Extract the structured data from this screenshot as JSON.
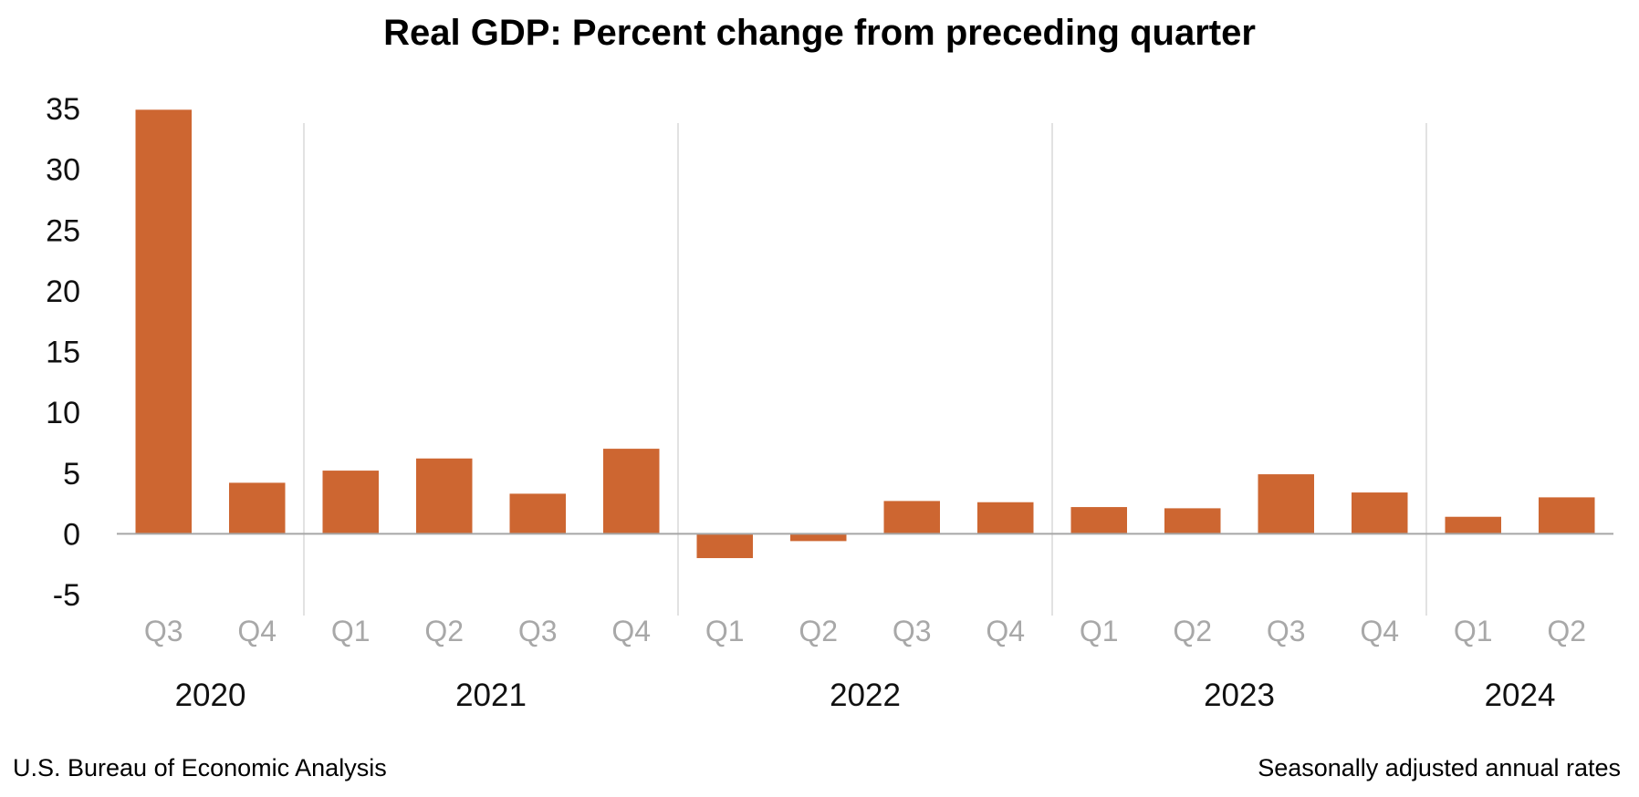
{
  "footer": {
    "source": "U.S. Bureau of Economic Analysis",
    "note": "Seasonally adjusted annual rates"
  },
  "chart_data": {
    "type": "bar",
    "title": "Real GDP: Percent change from preceding quarter",
    "xlabel": "",
    "ylabel": "",
    "ylim": [
      -5,
      35
    ],
    "yticks": [
      35,
      30,
      25,
      20,
      15,
      10,
      5,
      0,
      -5
    ],
    "categories": [
      "Q3",
      "Q4",
      "Q1",
      "Q2",
      "Q3",
      "Q4",
      "Q1",
      "Q2",
      "Q3",
      "Q4",
      "Q1",
      "Q2",
      "Q3",
      "Q4",
      "Q1",
      "Q2"
    ],
    "values": [
      34.9,
      4.2,
      5.2,
      6.2,
      3.3,
      7.0,
      -2.0,
      -0.6,
      2.7,
      2.6,
      2.2,
      2.1,
      4.9,
      3.4,
      1.4,
      3.0
    ],
    "year_groups": [
      {
        "year": "2020",
        "count": 2
      },
      {
        "year": "2021",
        "count": 4
      },
      {
        "year": "2022",
        "count": 4
      },
      {
        "year": "2023",
        "count": 4
      },
      {
        "year": "2024",
        "count": 2
      }
    ],
    "bar_color": "#CD6631",
    "axis_color": "#A6A6A6",
    "grid": false
  }
}
